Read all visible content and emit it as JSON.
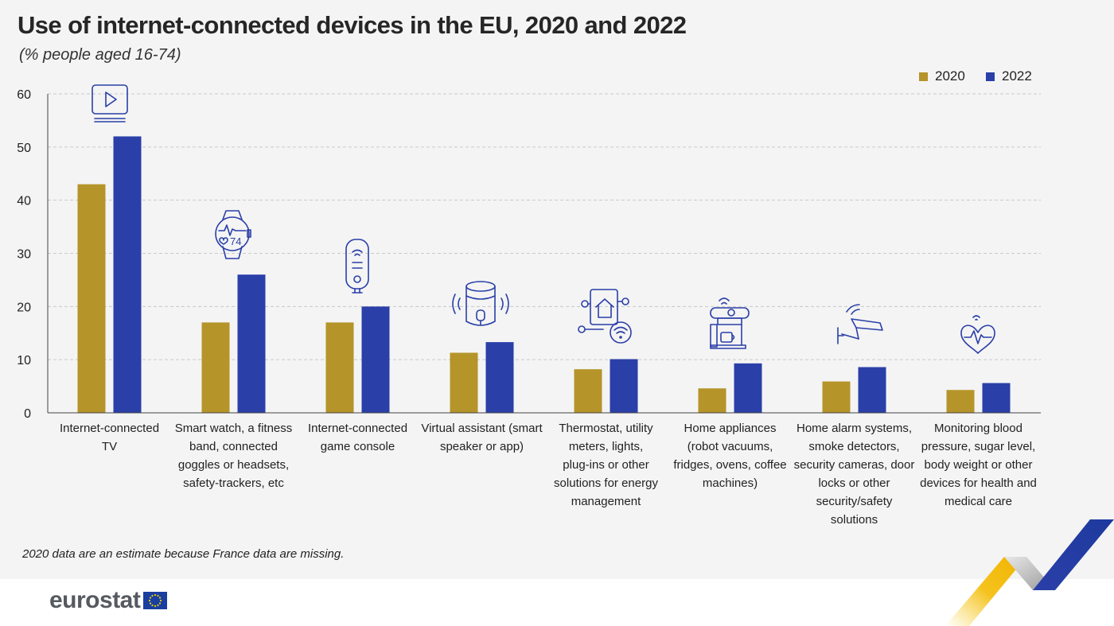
{
  "header": {
    "title": "Use of internet-connected devices in the EU, 2020 and 2022",
    "subtitle": "(% people aged 16-74)"
  },
  "legend": [
    {
      "label": "2020",
      "color": "#b5942a"
    },
    {
      "label": "2022",
      "color": "#2a3fa8"
    }
  ],
  "chart_data": {
    "type": "bar",
    "title": "Use of internet-connected devices in the EU, 2020 and 2022",
    "subtitle": "(% people aged 16-74)",
    "xlabel": "",
    "ylabel": "",
    "ylim": [
      0,
      60
    ],
    "yticks": [
      0,
      10,
      20,
      30,
      40,
      50,
      60
    ],
    "grid": true,
    "legend_position": "top-right",
    "categories": [
      "Internet-connected TV",
      "Smart watch, a fitness band, connected goggles or headsets, safety-trackers, etc",
      "Internet-connected game console",
      "Virtual assistant (smart speaker or app)",
      "Thermostat, utility meters, lights, plug-ins or other solutions for energy management",
      "Home appliances (robot vacuums, fridges, ovens, coffee machines)",
      "Home alarm systems, smoke detectors, security cameras, door locks or other security/safety solutions",
      "Monitoring blood pressure, sugar level, body weight or other devices for health and medical care"
    ],
    "series": [
      {
        "name": "2020",
        "values": [
          43,
          17,
          17,
          11.3,
          8.2,
          4.6,
          5.9,
          4.3
        ]
      },
      {
        "name": "2022",
        "values": [
          52,
          26,
          20,
          13.3,
          10.1,
          9.3,
          8.6,
          5.6
        ]
      }
    ]
  },
  "category_labels": [
    [
      "Internet-connected",
      "TV"
    ],
    [
      "Smart watch, a fitness",
      "band, connected",
      "goggles or headsets,",
      "safety-trackers, etc"
    ],
    [
      "Internet-connected",
      "game console"
    ],
    [
      "Virtual assistant (smart",
      "speaker or app)"
    ],
    [
      "Thermostat, utility",
      "meters, lights,",
      "plug-ins or other",
      "solutions for energy",
      "management"
    ],
    [
      "Home appliances",
      "(robot vacuums,",
      "fridges, ovens, coffee",
      "machines)"
    ],
    [
      "Home alarm systems,",
      "smoke detectors,",
      "security cameras, door",
      "locks or other",
      "security/safety",
      "solutions"
    ],
    [
      "Monitoring blood",
      "pressure, sugar level,",
      "body weight or other",
      "devices for health and",
      "medical care"
    ]
  ],
  "icons": [
    "tv-icon",
    "smartwatch-icon",
    "game-console-icon",
    "smart-speaker-icon",
    "smart-home-icon",
    "coffee-machine-icon",
    "security-camera-icon",
    "heart-monitor-icon"
  ],
  "watch_display": "74",
  "footnote": "2020 data are an estimate because France data are missing.",
  "footer": {
    "logo_text": "eurostat"
  }
}
